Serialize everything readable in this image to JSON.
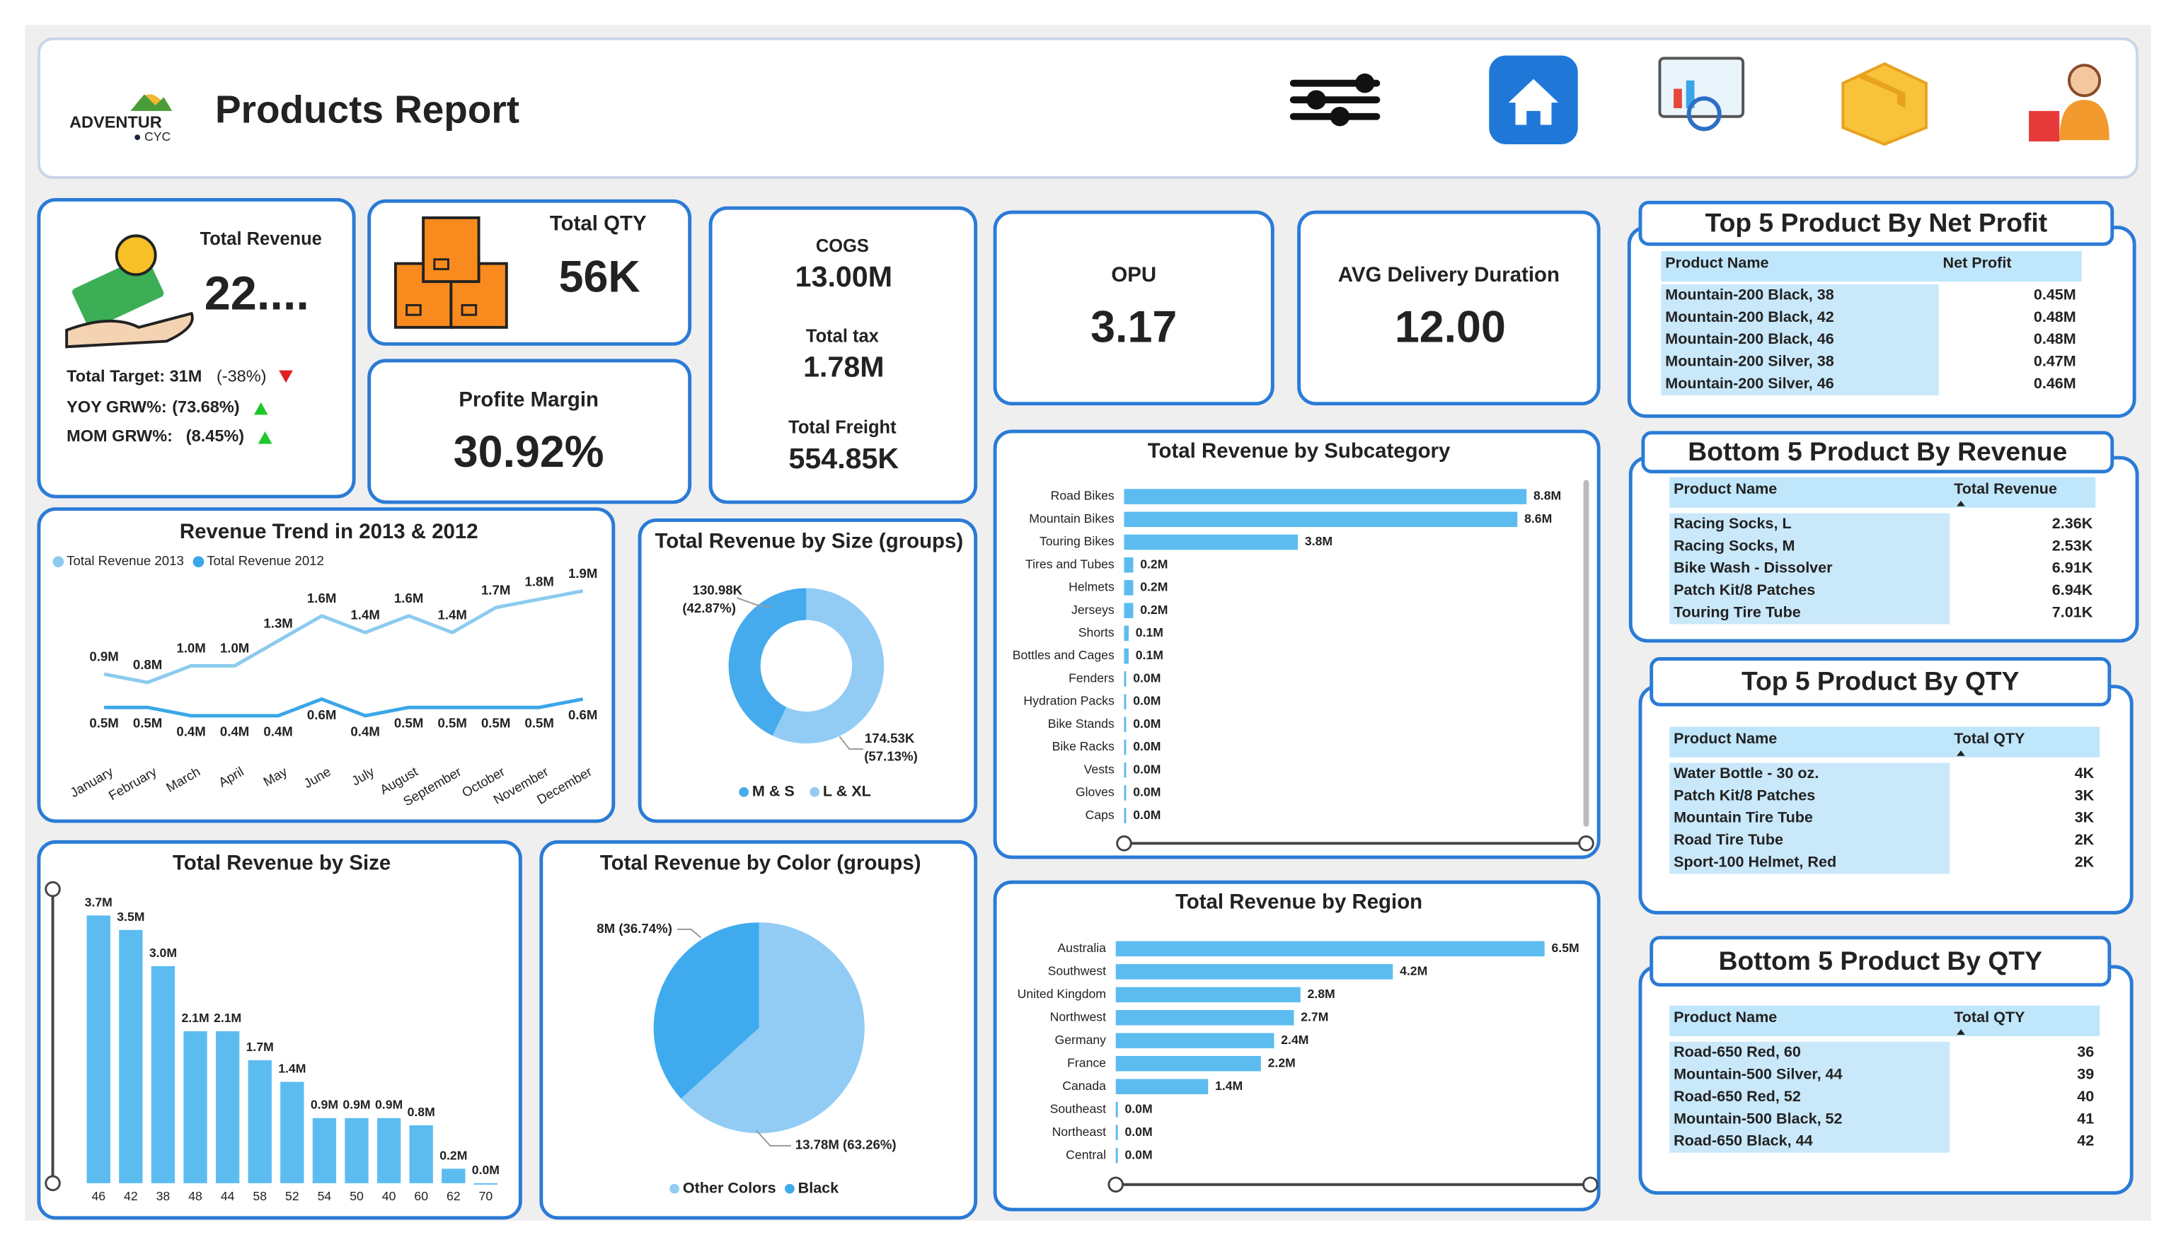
{
  "header": {
    "logo": "ADVENTUR",
    "logo_sub": "CYC",
    "title": "Products Report"
  },
  "kpis": {
    "total_revenue": {
      "label": "Total Revenue",
      "value": "22...."
    },
    "total_target": {
      "label": "Total Target: 31M",
      "change": "(-38%)"
    },
    "yoy": {
      "label": "YOY GRW%:",
      "value": "(73.68%)"
    },
    "mom": {
      "label": "MOM GRW%:",
      "value": "(8.45%)"
    },
    "total_qty": {
      "label": "Total QTY",
      "value": "56K"
    },
    "profit_margin": {
      "label": "Profite Margin",
      "value": "30.92%"
    },
    "cogs": {
      "label": "COGS",
      "value": "13.00M"
    },
    "total_tax": {
      "label": "Total tax",
      "value": "1.78M"
    },
    "total_freight": {
      "label": "Total Freight",
      "value": "554.85K"
    },
    "opu": {
      "label": "OPU",
      "value": "3.17"
    },
    "avg_delivery": {
      "label": "AVG Delivery Duration",
      "value": "12.00"
    }
  },
  "tables": [
    {
      "title": "Top 5 Product By Net Profit",
      "headers": [
        "Product Name",
        "Net Profit"
      ],
      "rows": [
        [
          "Mountain-200 Black, 38",
          "0.45M"
        ],
        [
          "Mountain-200 Black, 42",
          "0.48M"
        ],
        [
          "Mountain-200 Black, 46",
          "0.48M"
        ],
        [
          "Mountain-200 Silver, 38",
          "0.47M"
        ],
        [
          "Mountain-200 Silver, 46",
          "0.46M"
        ]
      ]
    },
    {
      "title": "Bottom 5 Product By Revenue",
      "headers": [
        "Product Name",
        "Total Revenue"
      ],
      "rows": [
        [
          "Racing Socks, L",
          "2.36K"
        ],
        [
          "Racing Socks, M",
          "2.53K"
        ],
        [
          "Bike Wash - Dissolver",
          "6.91K"
        ],
        [
          "Patch Kit/8 Patches",
          "6.94K"
        ],
        [
          "Touring Tire Tube",
          "7.01K"
        ]
      ]
    },
    {
      "title": "Top 5 Product By QTY",
      "headers": [
        "Product Name",
        "Total QTY"
      ],
      "rows": [
        [
          "Water Bottle - 30 oz.",
          "4K"
        ],
        [
          "Patch Kit/8 Patches",
          "3K"
        ],
        [
          "Mountain Tire Tube",
          "3K"
        ],
        [
          "Road Tire Tube",
          "2K"
        ],
        [
          "Sport-100 Helmet, Red",
          "2K"
        ]
      ]
    },
    {
      "title": "Bottom 5 Product By QTY",
      "headers": [
        "Product Name",
        "Total QTY"
      ],
      "rows": [
        [
          "Road-650 Red, 60",
          "36"
        ],
        [
          "Mountain-500 Silver, 44",
          "39"
        ],
        [
          "Road-650 Red, 52",
          "40"
        ],
        [
          "Mountain-500 Black, 52",
          "41"
        ],
        [
          "Road-650 Black, 44",
          "42"
        ]
      ]
    }
  ],
  "chart_data": [
    {
      "type": "line",
      "title": "Revenue Trend in 2013 & 2012",
      "categories": [
        "January",
        "February",
        "March",
        "April",
        "May",
        "June",
        "July",
        "August",
        "September",
        "October",
        "November",
        "December"
      ],
      "series": [
        {
          "name": "Total Revenue 2013",
          "color": "#8ccbef",
          "values": [
            0.9,
            0.8,
            1.0,
            1.0,
            1.3,
            1.6,
            1.4,
            1.6,
            1.4,
            1.7,
            1.8,
            1.9
          ],
          "value_labels": [
            "0.9M",
            "0.8M",
            "1.0M",
            "1.0M",
            "1.3M",
            "1.6M",
            "1.4M",
            "1.6M",
            "1.4M",
            "1.7M",
            "1.8M",
            "1.9M"
          ]
        },
        {
          "name": "Total Revenue 2012",
          "color": "#3aa6e8",
          "values": [
            0.5,
            0.5,
            0.4,
            0.4,
            0.4,
            0.6,
            0.4,
            0.5,
            0.5,
            0.5,
            0.5,
            0.6
          ],
          "value_labels": [
            "0.5M",
            "0.5M",
            "0.4M",
            "0.4M",
            "0.4M",
            "0.6M",
            "0.4M",
            "0.5M",
            "0.5M",
            "0.5M",
            "0.5M",
            "0.6M"
          ]
        }
      ]
    },
    {
      "type": "donut",
      "title": "Total Revenue by Size (groups)",
      "categories": [
        "M & S",
        "L & XL"
      ],
      "values": [
        130.98,
        174.53
      ],
      "value_labels": [
        "130.98K",
        "174.53K"
      ],
      "percent_labels": [
        "(42.87%)",
        "(57.13%)"
      ],
      "colors": [
        "#45abed",
        "#92ccf5"
      ]
    },
    {
      "type": "bar",
      "orientation": "horizontal",
      "title": "Total Revenue by Subcategory",
      "color": "#5cbcf0",
      "categories": [
        "Road Bikes",
        "Mountain Bikes",
        "Touring Bikes",
        "Tires and Tubes",
        "Helmets",
        "Jerseys",
        "Shorts",
        "Bottles and Cages",
        "Fenders",
        "Hydration Packs",
        "Bike Stands",
        "Bike Racks",
        "Vests",
        "Gloves",
        "Caps"
      ],
      "values": [
        8.8,
        8.6,
        3.8,
        0.2,
        0.2,
        0.2,
        0.1,
        0.1,
        0.0,
        0.0,
        0.0,
        0.0,
        0.0,
        0.0,
        0.0
      ],
      "value_labels": [
        "8.8M",
        "8.6M",
        "3.8M",
        "0.2M",
        "0.2M",
        "0.2M",
        "0.1M",
        "0.1M",
        "0.0M",
        "0.0M",
        "0.0M",
        "0.0M",
        "0.0M",
        "0.0M",
        "0.0M"
      ]
    },
    {
      "type": "bar",
      "orientation": "vertical",
      "title": "Total Revenue by Size",
      "color": "#5cbcf0",
      "categories": [
        "46",
        "42",
        "38",
        "48",
        "44",
        "58",
        "52",
        "54",
        "50",
        "40",
        "60",
        "62",
        "70"
      ],
      "values": [
        3.7,
        3.5,
        3.0,
        2.1,
        2.1,
        1.7,
        1.4,
        0.9,
        0.9,
        0.9,
        0.8,
        0.2,
        0.0
      ],
      "value_labels": [
        "3.7M",
        "3.5M",
        "3.0M",
        "2.1M",
        "2.1M",
        "1.7M",
        "1.4M",
        "0.9M",
        "0.9M",
        "0.9M",
        "0.8M",
        "0.2M",
        "0.0M"
      ]
    },
    {
      "type": "pie",
      "title": "Total Revenue by Color (groups)",
      "categories": [
        "Other Colors",
        "Black"
      ],
      "values": [
        13.78,
        8
      ],
      "value_labels": [
        "13.78M (63.26%)",
        "8M (36.74%)"
      ],
      "colors": [
        "#92ccf5",
        "#3fabee"
      ]
    },
    {
      "type": "bar",
      "orientation": "horizontal",
      "title": "Total Revenue by Region",
      "color": "#5cbcf0",
      "categories": [
        "Australia",
        "Southwest",
        "United Kingdom",
        "Northwest",
        "Germany",
        "France",
        "Canada",
        "Southeast",
        "Northeast",
        "Central"
      ],
      "values": [
        6.5,
        4.2,
        2.8,
        2.7,
        2.4,
        2.2,
        1.4,
        0.0,
        0.0,
        0.0
      ],
      "value_labels": [
        "6.5M",
        "4.2M",
        "2.8M",
        "2.7M",
        "2.4M",
        "2.2M",
        "1.4M",
        "0.0M",
        "0.0M",
        "0.0M"
      ]
    }
  ]
}
